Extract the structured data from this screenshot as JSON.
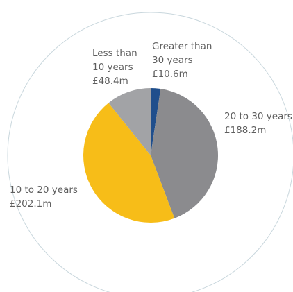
{
  "chart_data": {
    "type": "pie",
    "title": "",
    "unit": "£m",
    "start": "12 o'clock",
    "direction": "clockwise",
    "grid": false,
    "legend": "none",
    "slices": [
      {
        "value": 10.6,
        "color": "#1f4e8c",
        "label_lines": [
          "Greater than",
          "30 years",
          "£10.6m"
        ]
      },
      {
        "value": 188.2,
        "color": "#8b8b8e",
        "label_lines": [
          "20 to 30 years",
          "£188.2m"
        ]
      },
      {
        "value": 202.1,
        "color": "#f7bd18",
        "label_lines": [
          "10 to 20 years",
          "£202.1m"
        ]
      },
      {
        "value": 48.4,
        "color": "#a2a3a6",
        "label_lines": [
          "Less than",
          "10 years",
          "£48.4m"
        ]
      }
    ],
    "outer_ring_color": "#c9d7dd"
  }
}
